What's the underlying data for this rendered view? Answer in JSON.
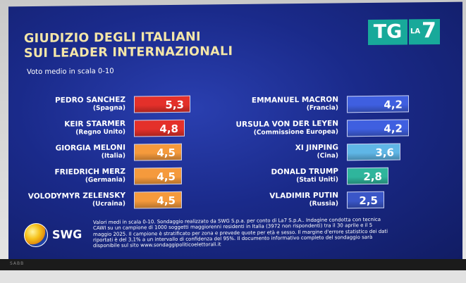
{
  "title_line1": "GIUDIZIO DEGLI ITALIANI",
  "title_line2": "SUI LEADER INTERNAZIONALI",
  "subtitle": "Voto medio in scala 0-10",
  "logo": {
    "tg": "TG",
    "la": "LA",
    "seven": "7"
  },
  "swg_label": "SWG",
  "tv_brand": "SABB",
  "colors": {
    "red": "#e4302a",
    "orange": "#f59a3c",
    "blue": "#3f5fe0",
    "lightblue": "#5fb6e6",
    "teal": "#2fb59c",
    "navyblue": "#3a56c8"
  },
  "chart_data": {
    "type": "bar",
    "title": "GIUDIZIO DEGLI ITALIANI SUI LEADER INTERNAZIONALI",
    "subtitle": "Voto medio in scala 0-10",
    "scale": [
      0,
      10
    ],
    "left": [
      {
        "name": "PEDRO SANCHEZ",
        "country": "(Spagna)",
        "value": 5.3,
        "label": "5,3",
        "color": "red"
      },
      {
        "name": "KEIR STARMER",
        "country": "(Regno Unito)",
        "value": 4.8,
        "label": "4,8",
        "color": "red"
      },
      {
        "name": "GIORGIA MELONI",
        "country": "(Italia)",
        "value": 4.5,
        "label": "4,5",
        "color": "orange"
      },
      {
        "name": "FRIEDRICH MERZ",
        "country": "(Germania)",
        "value": 4.5,
        "label": "4,5",
        "color": "orange"
      },
      {
        "name": "VOLODYMYR ZELENSKY",
        "country": "(Ucraina)",
        "value": 4.5,
        "label": "4,5",
        "color": "orange"
      }
    ],
    "right": [
      {
        "name": "EMMANUEL MACRON",
        "country": "(Francia)",
        "value": 4.2,
        "label": "4,2",
        "color": "blue"
      },
      {
        "name": "URSULA VON DER LEYEN",
        "country": "(Commissione Europea)",
        "value": 4.2,
        "label": "4,2",
        "color": "blue"
      },
      {
        "name": "XI JINPING",
        "country": "(Cina)",
        "value": 3.6,
        "label": "3,6",
        "color": "lightblue"
      },
      {
        "name": "DONALD TRUMP",
        "country": "(Stati Uniti)",
        "value": 2.8,
        "label": "2,8",
        "color": "teal"
      },
      {
        "name": "VLADIMIR PUTIN",
        "country": "(Russia)",
        "value": 2.5,
        "label": "2,5",
        "color": "navyblue"
      }
    ]
  },
  "footnote": [
    "Valori medi in scala 0-10. Sondaggio realizzato da SWG S.p.a. per conto di La7 S.p.A.. Indagine condotta con tecnica",
    "CAWI su un campione di 1000 soggetti maggiorenni residenti in Italia (3972 non rispondenti) tra il 30 aprile e il 5",
    "maggio 2025. Il campione è stratificato per zona e prevede quote per età e sesso. Il margine d'errore statistico dei dati",
    "riportati è del 3,1% a un intervallo di confidenza del 95%. Il documento informativo completo del sondaggio sarà",
    "disponibile sul sito www.sondaggipoliticoelettorali.it"
  ]
}
